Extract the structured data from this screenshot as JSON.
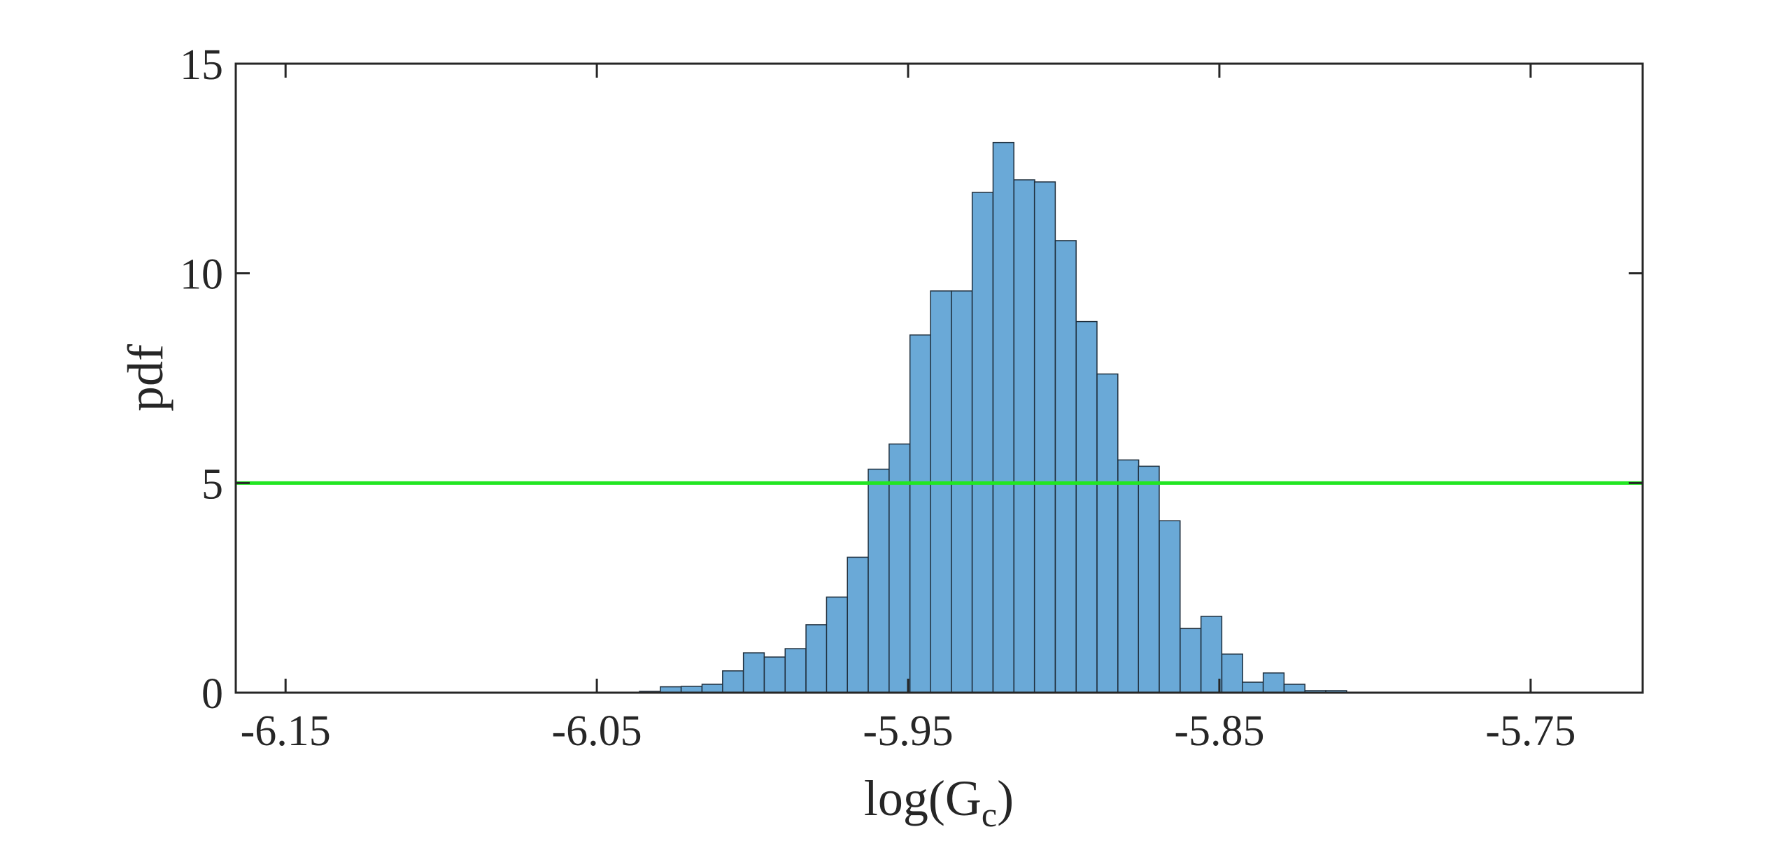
{
  "chart_data": {
    "type": "bar",
    "title": "",
    "xlabel": "log(G",
    "xlabel_subscript": "c",
    "xlabel_close": ")",
    "ylabel": "pdf",
    "xlim": [
      -6.166,
      -5.714
    ],
    "ylim": [
      0,
      15
    ],
    "xticks": [
      -6.15,
      -6.05,
      -5.95,
      -5.85,
      -5.75
    ],
    "xtick_labels": [
      "-6.15",
      "-6.05",
      "-5.95",
      "-5.85",
      "-5.75"
    ],
    "yticks": [
      0,
      5,
      10,
      15
    ],
    "ytick_labels": [
      "0",
      "5",
      "10",
      "15"
    ],
    "grid": false,
    "bin_width": 0.00668,
    "bins_x": [
      -6.0363,
      -6.0296,
      -6.0229,
      -6.0162,
      -6.0096,
      -6.0029,
      -5.9962,
      -5.9895,
      -5.9828,
      -5.9762,
      -5.9695,
      -5.9628,
      -5.9561,
      -5.9494,
      -5.9428,
      -5.9361,
      -5.9294,
      -5.9227,
      -5.916,
      -5.9094,
      -5.9027,
      -5.896,
      -5.8893,
      -5.8826,
      -5.876,
      -5.8693,
      -5.8626,
      -5.8559,
      -5.8492,
      -5.8426,
      -5.8359,
      -5.8292,
      -5.8225,
      -5.8158
    ],
    "values": [
      0.03,
      0.14,
      0.15,
      0.2,
      0.52,
      0.95,
      0.85,
      1.05,
      1.62,
      2.28,
      3.23,
      5.33,
      5.93,
      8.53,
      9.58,
      9.58,
      11.93,
      13.12,
      12.23,
      12.18,
      10.78,
      8.85,
      7.6,
      5.55,
      5.4,
      4.1,
      1.53,
      1.82,
      0.92,
      0.25,
      0.47,
      0.2,
      0.05,
      0.05
    ],
    "bar_color": "#6aa9d7",
    "bar_edge_color": "#1f2f3d",
    "reference_line": {
      "y": 5,
      "color": "#22e622"
    },
    "axis_color": "#262626"
  }
}
